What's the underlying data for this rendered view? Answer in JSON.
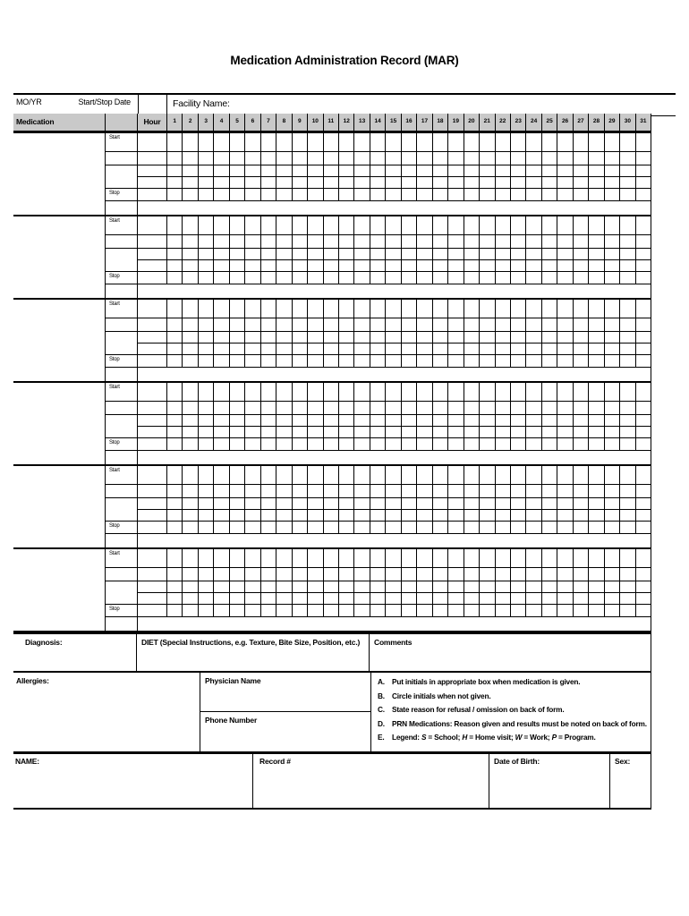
{
  "title": "Medication Administration Record (MAR)",
  "colors": {
    "header_fill": "#c9c9c9",
    "line": "#000000"
  },
  "header": {
    "mo_yr_label": "MO/YR",
    "start_stop_label": "Start/Stop Date",
    "facility_label": "Facility Name:",
    "medication_label": "Medication",
    "hour_label": "Hour",
    "days": [
      "1",
      "2",
      "3",
      "4",
      "5",
      "6",
      "7",
      "8",
      "9",
      "10",
      "11",
      "12",
      "13",
      "14",
      "15",
      "16",
      "17",
      "18",
      "19",
      "20",
      "21",
      "22",
      "23",
      "24",
      "25",
      "26",
      "27",
      "28",
      "29",
      "30",
      "31"
    ]
  },
  "grid": {
    "block_count": 6,
    "start_label": "Start",
    "stop_label": "Stop"
  },
  "middle": {
    "diagnosis_label": "Diagnosis:",
    "diet_label": "DIET (Special Instructions, e.g. Texture, Bite Size, Position, etc.)",
    "comments_label": "Comments"
  },
  "lower": {
    "allergies_label": "Allergies:",
    "physician_label": "Physician Name",
    "phone_label": "Phone Number",
    "instructions": [
      {
        "letter": "A.",
        "segments": [
          {
            "t": "Put initials in appropriate box when medication is given."
          }
        ]
      },
      {
        "letter": "B.",
        "segments": [
          {
            "t": "Circle initials when not given."
          }
        ]
      },
      {
        "letter": "C.",
        "segments": [
          {
            "t": "State reason for refusal / omission on back of form."
          }
        ]
      },
      {
        "letter": "D.",
        "segments": [
          {
            "t": "PRN Medications: Reason given and results must be noted on back of form."
          }
        ]
      },
      {
        "letter": "E.",
        "segments": [
          {
            "t": "Legend:  "
          },
          {
            "t": "S",
            "i": true
          },
          {
            "t": " = School; "
          },
          {
            "t": "H",
            "i": true
          },
          {
            "t": " = Home visit; "
          },
          {
            "t": "W",
            "i": true
          },
          {
            "t": " = Work; "
          },
          {
            "t": "P",
            "i": true
          },
          {
            "t": " = Program."
          }
        ]
      }
    ]
  },
  "footer": {
    "name_label": "NAME:",
    "record_label": "Record #",
    "dob_label": "Date of Birth:",
    "sex_label": "Sex:"
  }
}
